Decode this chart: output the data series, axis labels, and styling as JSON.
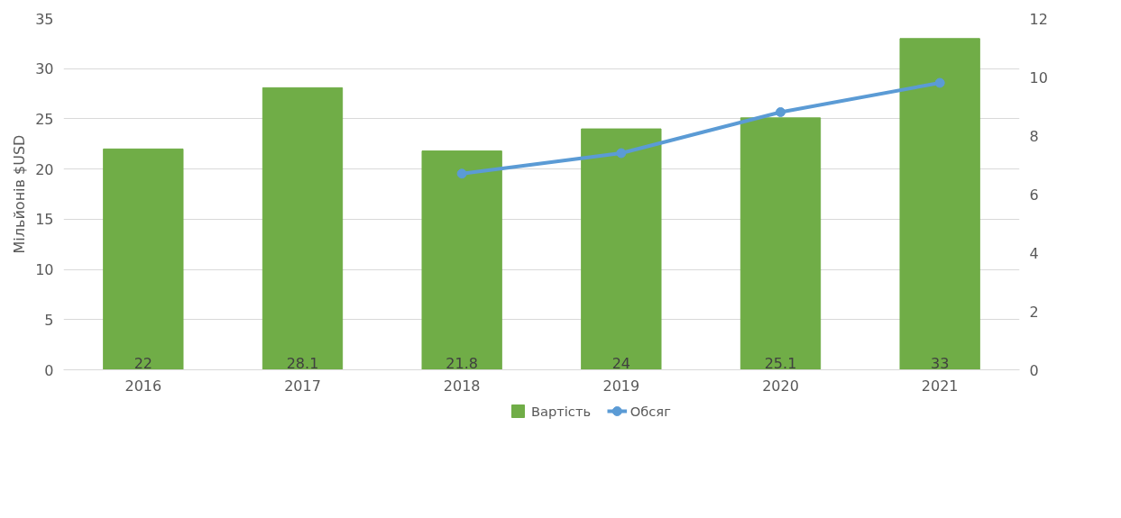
{
  "chart_data": {
    "type": "bar",
    "categories": [
      "2016",
      "2017",
      "2018",
      "2019",
      "2020",
      "2021"
    ],
    "ylabel": "Мільйонів $USD",
    "series": [
      {
        "name": "Вартість",
        "type": "bar",
        "color": "#70ad47",
        "values": [
          22,
          28.1,
          21.8,
          24,
          25.1,
          33
        ],
        "value_labels": [
          "22",
          "28.1",
          "21.8",
          "24",
          "25.1",
          "33"
        ]
      },
      {
        "name": "Обсяг",
        "type": "line",
        "axis": "y2",
        "color": "#5b9bd5",
        "marker": "circle",
        "values": [
          null,
          null,
          6.7,
          7.4,
          8.8,
          9.8
        ]
      }
    ],
    "ylim": [
      0,
      35
    ],
    "yticks": [
      0,
      5,
      10,
      15,
      20,
      25,
      30,
      35
    ],
    "y2lim": [
      0,
      12
    ],
    "y2ticks": [
      0,
      2,
      4,
      6,
      8,
      10,
      12
    ],
    "grid": "y",
    "legend": "bottom"
  }
}
